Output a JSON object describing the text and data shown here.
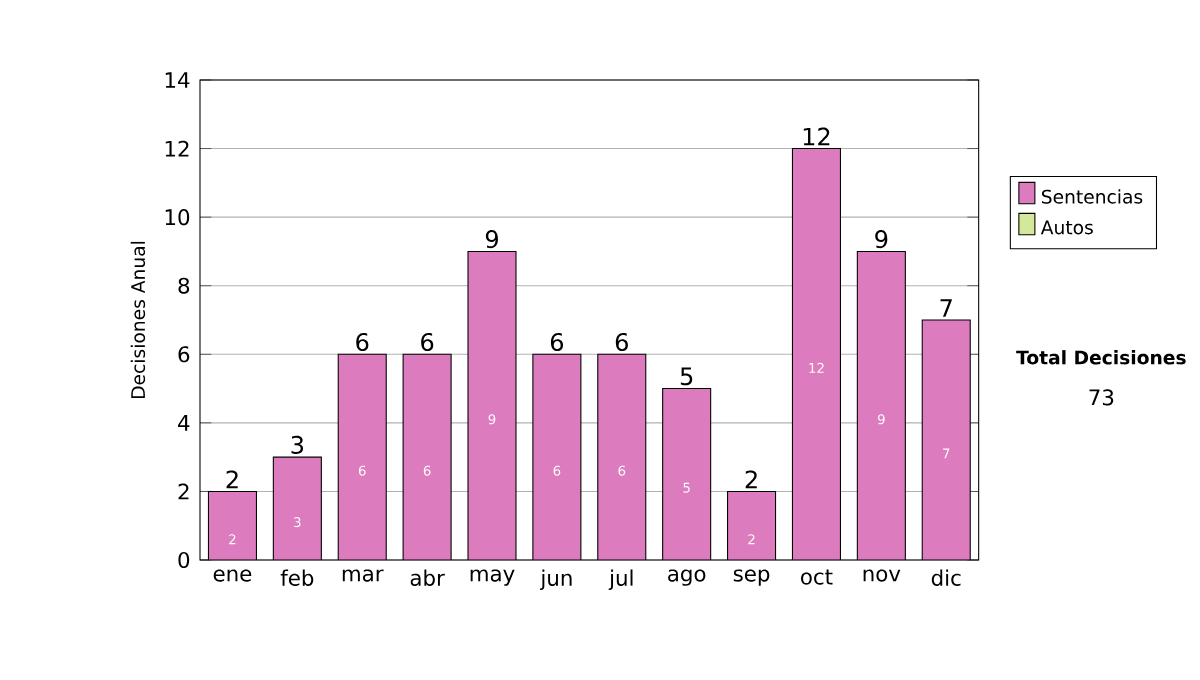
{
  "chart_data": {
    "type": "bar",
    "stacked": true,
    "ylabel": "Decisiones Anual",
    "categories": [
      "ene",
      "feb",
      "mar",
      "abr",
      "may",
      "jun",
      "jul",
      "ago",
      "sep",
      "oct",
      "nov",
      "dic"
    ],
    "series": [
      {
        "name": "Sentencias",
        "color": "#dd7bbf",
        "values": [
          2,
          3,
          6,
          6,
          9,
          6,
          6,
          5,
          2,
          12,
          9,
          7
        ],
        "value_labels": [
          "2",
          "3",
          "6",
          "6",
          "9",
          "6",
          "6",
          "5",
          "2",
          "12",
          "9",
          "7"
        ]
      },
      {
        "name": "Autos",
        "color": "#d4e89c",
        "values": [
          0,
          0,
          0,
          0,
          0,
          0,
          0,
          0,
          0,
          0,
          0,
          0
        ]
      }
    ],
    "totals": [
      "2",
      "3",
      "6",
      "6",
      "9",
      "6",
      "6",
      "5",
      "2",
      "12",
      "9",
      "7"
    ],
    "ylim": [
      0,
      14
    ],
    "yticks": [
      0,
      2,
      4,
      6,
      8,
      10,
      12,
      14
    ],
    "grid": "y",
    "legend": "right",
    "annotations": [
      "Total Decisiones",
      "73"
    ]
  }
}
